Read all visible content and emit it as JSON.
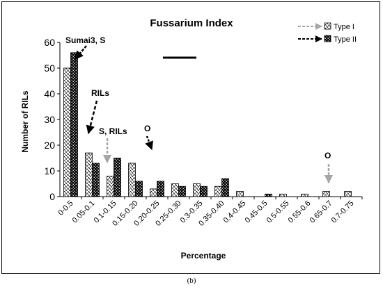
{
  "caption": "(b)",
  "chart_data": {
    "type": "bar",
    "title": "Fussarium Index",
    "xlabel": "Percentage",
    "ylabel": "Number of RILs",
    "ylim": [
      0,
      60
    ],
    "yticks": [
      0,
      10,
      20,
      30,
      40,
      50,
      60
    ],
    "legend_position": "top-right",
    "grid": false,
    "categories": [
      "0-0.5",
      "0.05-0.1",
      "0.1-0.15",
      "0.15-0.20",
      "0.20-0.25",
      "0.25-0.30",
      "0.3-0.35",
      "0.35-0.40",
      "0.4-0.45",
      "0.45-0.5",
      "0.5-0.55",
      "0.55-0.6",
      "0.65-0.7",
      "0.7-0.75"
    ],
    "series": [
      {
        "name": "Type I",
        "values": [
          50,
          17,
          8,
          13,
          3,
          5,
          5,
          4,
          2,
          0,
          1,
          1,
          2,
          2
        ]
      },
      {
        "name": "Type II",
        "values": [
          56,
          13,
          15,
          6,
          6,
          4,
          4,
          7,
          0,
          1,
          0,
          0,
          0,
          0
        ]
      }
    ],
    "annotations": [
      {
        "text": "Sumai3, S",
        "category": "0-0.5"
      },
      {
        "text": "RILs",
        "category": "0.05-0.1"
      },
      {
        "text": "S, RILs",
        "category": "0.1-0.15"
      },
      {
        "text": "O",
        "category": "0.20-0.25"
      },
      {
        "text": "O",
        "category": "0.65-0.7"
      }
    ],
    "colors": {
      "type1_arrow": "#a6a6a6",
      "type2_arrow": "#000000"
    }
  }
}
